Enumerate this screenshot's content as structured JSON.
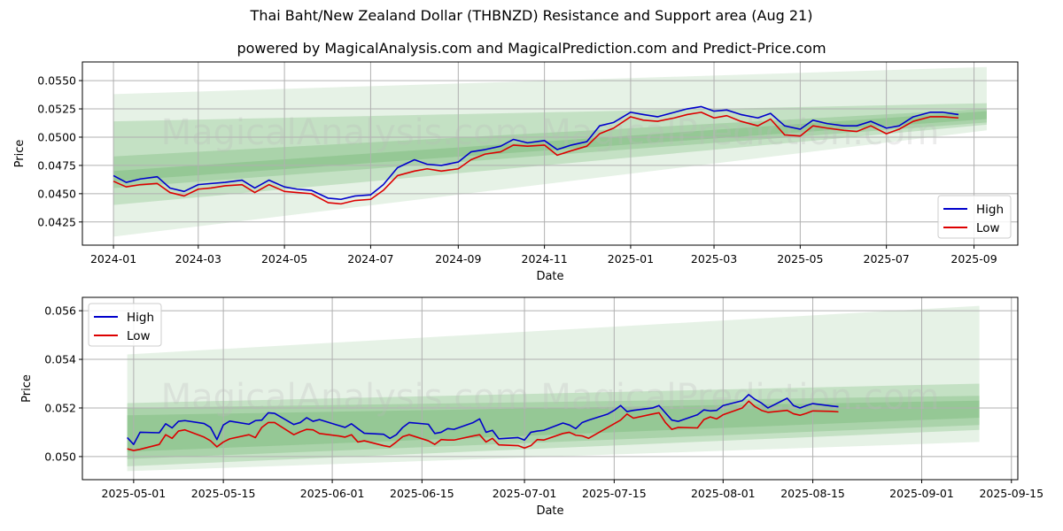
{
  "title": "Thai Baht/New Zealand Dollar (THBNZD) Resistance and Support area (Aug 21)",
  "subtitle": "powered by MagicalAnalysis.com and MagicalPrediction.com and Predict-Price.com",
  "watermarks": [
    "MagicalAnalysis.com",
    "MagicalPrediction.com"
  ],
  "colors": {
    "high": "#0000cc",
    "low": "#dd0000",
    "band": "#4ca64c",
    "grid": "#b0b0b0"
  },
  "chart_data": [
    {
      "type": "line",
      "xlabel": "Date",
      "ylabel": "Price",
      "grid": true,
      "legend": {
        "position": "bottom-right",
        "entries": [
          "High",
          "Low"
        ]
      },
      "xlim": [
        "2023-12-10",
        "2025-10-02"
      ],
      "ylim": [
        0.04045,
        0.05665
      ],
      "x_ticks": [
        "2024-01",
        "2024-03",
        "2024-05",
        "2024-07",
        "2024-09",
        "2024-11",
        "2025-01",
        "2025-03",
        "2025-05",
        "2025-07",
        "2025-09"
      ],
      "y_ticks": [
        "0.0425",
        "0.0450",
        "0.0475",
        "0.0500",
        "0.0525",
        "0.0550"
      ],
      "bands": [
        {
          "x": [
            "2024-01-01",
            "2025-09-10"
          ],
          "upper": [
            0.0538,
            0.0562
          ],
          "lower": [
            0.0412,
            0.0506
          ]
        },
        {
          "x": [
            "2024-01-01",
            "2025-09-10"
          ],
          "upper": [
            0.0514,
            0.053
          ],
          "lower": [
            0.044,
            0.0511
          ]
        },
        {
          "x": [
            "2024-01-01",
            "2025-09-10"
          ],
          "upper": [
            0.0483,
            0.0525
          ],
          "lower": [
            0.0455,
            0.0513
          ]
        },
        {
          "x": [
            "2024-01-01",
            "2025-09-10"
          ],
          "upper": [
            0.047,
            0.0523
          ],
          "lower": [
            0.0461,
            0.0516
          ]
        }
      ],
      "dates": [
        "2024-01-01",
        "2024-01-10",
        "2024-01-20",
        "2024-02-01",
        "2024-02-10",
        "2024-02-20",
        "2024-03-01",
        "2024-03-10",
        "2024-03-20",
        "2024-04-01",
        "2024-04-10",
        "2024-04-20",
        "2024-05-01",
        "2024-05-10",
        "2024-05-20",
        "2024-06-01",
        "2024-06-10",
        "2024-06-20",
        "2024-07-01",
        "2024-07-10",
        "2024-07-20",
        "2024-08-01",
        "2024-08-10",
        "2024-08-20",
        "2024-09-01",
        "2024-09-10",
        "2024-09-20",
        "2024-10-01",
        "2024-10-10",
        "2024-10-20",
        "2024-11-01",
        "2024-11-10",
        "2024-11-20",
        "2024-12-01",
        "2024-12-10",
        "2024-12-20",
        "2025-01-01",
        "2025-01-10",
        "2025-01-20",
        "2025-02-01",
        "2025-02-10",
        "2025-02-20",
        "2025-03-01",
        "2025-03-10",
        "2025-03-20",
        "2025-04-01",
        "2025-04-10",
        "2025-04-20",
        "2025-05-01",
        "2025-05-10",
        "2025-05-20",
        "2025-06-01",
        "2025-06-10",
        "2025-06-20",
        "2025-07-01",
        "2025-07-10",
        "2025-07-20",
        "2025-08-01",
        "2025-08-10",
        "2025-08-21"
      ],
      "series": [
        {
          "name": "High",
          "values": [
            0.0466,
            0.046,
            0.0463,
            0.0465,
            0.0455,
            0.0452,
            0.0458,
            0.0459,
            0.046,
            0.0462,
            0.0455,
            0.0462,
            0.0456,
            0.0454,
            0.0453,
            0.0446,
            0.0445,
            0.0448,
            0.0449,
            0.0458,
            0.0473,
            0.048,
            0.0476,
            0.0475,
            0.0478,
            0.0487,
            0.0489,
            0.0492,
            0.0498,
            0.0495,
            0.0497,
            0.0489,
            0.0493,
            0.0496,
            0.051,
            0.0513,
            0.0522,
            0.052,
            0.0518,
            0.0522,
            0.0525,
            0.0527,
            0.0523,
            0.0524,
            0.052,
            0.0517,
            0.0521,
            0.051,
            0.0507,
            0.0515,
            0.0512,
            0.051,
            0.051,
            0.0514,
            0.0508,
            0.051,
            0.0518,
            0.0522,
            0.0522,
            0.052
          ]
        },
        {
          "name": "Low",
          "values": [
            0.0461,
            0.0456,
            0.0458,
            0.0459,
            0.0451,
            0.0448,
            0.0454,
            0.0455,
            0.0457,
            0.0458,
            0.0451,
            0.0458,
            0.0452,
            0.0451,
            0.045,
            0.0442,
            0.0441,
            0.0444,
            0.0445,
            0.0453,
            0.0466,
            0.047,
            0.0472,
            0.047,
            0.0472,
            0.048,
            0.0485,
            0.0487,
            0.0493,
            0.0492,
            0.0493,
            0.0484,
            0.0488,
            0.0492,
            0.0503,
            0.0508,
            0.0518,
            0.0515,
            0.0514,
            0.0517,
            0.052,
            0.0522,
            0.0517,
            0.0519,
            0.0514,
            0.051,
            0.0516,
            0.0502,
            0.0501,
            0.051,
            0.0508,
            0.0506,
            0.0505,
            0.051,
            0.0503,
            0.0507,
            0.0514,
            0.0518,
            0.0518,
            0.0517
          ]
        }
      ]
    },
    {
      "type": "line",
      "xlabel": "Date",
      "ylabel": "Price",
      "grid": true,
      "legend": {
        "position": "top-left",
        "entries": [
          "High",
          "Low"
        ]
      },
      "xlim": [
        "2025-04-23",
        "2025-09-16"
      ],
      "ylim": [
        0.04905,
        0.05655
      ],
      "x_ticks": [
        "2025-05-01",
        "2025-05-15",
        "2025-06-01",
        "2025-06-15",
        "2025-07-01",
        "2025-07-15",
        "2025-08-01",
        "2025-08-15",
        "2025-09-01",
        "2025-09-15"
      ],
      "y_ticks": [
        "0.050",
        "0.052",
        "0.054",
        "0.056"
      ],
      "bands": [
        {
          "x": [
            "2025-04-30",
            "2025-09-10"
          ],
          "upper": [
            0.0542,
            0.0562
          ],
          "lower": [
            0.0494,
            0.0506
          ]
        },
        {
          "x": [
            "2025-04-30",
            "2025-09-10"
          ],
          "upper": [
            0.0522,
            0.053
          ],
          "lower": [
            0.0496,
            0.0511
          ]
        },
        {
          "x": [
            "2025-04-30",
            "2025-09-10"
          ],
          "upper": [
            0.052,
            0.0525
          ],
          "lower": [
            0.0499,
            0.0513
          ]
        },
        {
          "x": [
            "2025-04-30",
            "2025-09-10"
          ],
          "upper": [
            0.0517,
            0.0523
          ],
          "lower": [
            0.0502,
            0.0516
          ]
        }
      ],
      "dates": [
        "2025-04-30",
        "2025-05-01",
        "2025-05-02",
        "2025-05-05",
        "2025-05-06",
        "2025-05-07",
        "2025-05-08",
        "2025-05-09",
        "2025-05-12",
        "2025-05-13",
        "2025-05-14",
        "2025-05-15",
        "2025-05-16",
        "2025-05-19",
        "2025-05-20",
        "2025-05-21",
        "2025-05-22",
        "2025-05-23",
        "2025-05-26",
        "2025-05-27",
        "2025-05-28",
        "2025-05-29",
        "2025-05-30",
        "2025-06-02",
        "2025-06-03",
        "2025-06-04",
        "2025-06-05",
        "2025-06-06",
        "2025-06-09",
        "2025-06-10",
        "2025-06-11",
        "2025-06-12",
        "2025-06-13",
        "2025-06-16",
        "2025-06-17",
        "2025-06-18",
        "2025-06-19",
        "2025-06-20",
        "2025-06-23",
        "2025-06-24",
        "2025-06-25",
        "2025-06-26",
        "2025-06-27",
        "2025-06-30",
        "2025-07-01",
        "2025-07-02",
        "2025-07-03",
        "2025-07-04",
        "2025-07-07",
        "2025-07-08",
        "2025-07-09",
        "2025-07-10",
        "2025-07-11",
        "2025-07-14",
        "2025-07-15",
        "2025-07-16",
        "2025-07-17",
        "2025-07-18",
        "2025-07-21",
        "2025-07-22",
        "2025-07-23",
        "2025-07-24",
        "2025-07-25",
        "2025-07-28",
        "2025-07-29",
        "2025-07-30",
        "2025-07-31",
        "2025-08-01",
        "2025-08-04",
        "2025-08-05",
        "2025-08-06",
        "2025-08-07",
        "2025-08-08",
        "2025-08-11",
        "2025-08-12",
        "2025-08-13",
        "2025-08-14",
        "2025-08-15",
        "2025-08-18",
        "2025-08-19"
      ],
      "series": [
        {
          "name": "High",
          "values": [
            0.05078,
            0.0505,
            0.051,
            0.05098,
            0.05135,
            0.05118,
            0.05145,
            0.05148,
            0.05136,
            0.0512,
            0.0507,
            0.0513,
            0.05146,
            0.05133,
            0.05148,
            0.0515,
            0.0518,
            0.05178,
            0.05132,
            0.0514,
            0.0516,
            0.05145,
            0.05152,
            0.05128,
            0.0512,
            0.05135,
            0.05115,
            0.05096,
            0.05092,
            0.05075,
            0.0509,
            0.0512,
            0.0514,
            0.05133,
            0.05095,
            0.051,
            0.05115,
            0.05112,
            0.0514,
            0.05155,
            0.051,
            0.05108,
            0.05073,
            0.05078,
            0.05068,
            0.051,
            0.05105,
            0.05108,
            0.05138,
            0.0513,
            0.05115,
            0.0514,
            0.0515,
            0.05175,
            0.0519,
            0.0521,
            0.05185,
            0.0519,
            0.052,
            0.0521,
            0.0518,
            0.0515,
            0.05145,
            0.05172,
            0.05192,
            0.05188,
            0.0519,
            0.0521,
            0.0523,
            0.05255,
            0.05235,
            0.0522,
            0.052,
            0.0524,
            0.0521,
            0.052,
            0.0521,
            0.05218,
            0.05208,
            0.05205
          ]
        },
        {
          "name": "Low",
          "values": [
            0.05032,
            0.05025,
            0.0503,
            0.0505,
            0.0509,
            0.05075,
            0.05105,
            0.0511,
            0.0508,
            0.05065,
            0.0504,
            0.0506,
            0.05073,
            0.0509,
            0.05078,
            0.0512,
            0.0514,
            0.0514,
            0.0509,
            0.05102,
            0.05112,
            0.0511,
            0.05095,
            0.05085,
            0.0508,
            0.0509,
            0.0506,
            0.05065,
            0.05045,
            0.0504,
            0.0506,
            0.05082,
            0.0509,
            0.05065,
            0.0505,
            0.0507,
            0.05068,
            0.05068,
            0.05085,
            0.0509,
            0.0506,
            0.05075,
            0.05048,
            0.05045,
            0.05035,
            0.05045,
            0.0507,
            0.05068,
            0.05095,
            0.051,
            0.05088,
            0.05085,
            0.05075,
            0.0512,
            0.05135,
            0.0515,
            0.05175,
            0.05158,
            0.05175,
            0.0518,
            0.0514,
            0.05112,
            0.0512,
            0.05118,
            0.05152,
            0.05163,
            0.05155,
            0.05172,
            0.052,
            0.05228,
            0.05205,
            0.0519,
            0.05182,
            0.0519,
            0.05176,
            0.0517,
            0.05178,
            0.05188,
            0.05186,
            0.05184
          ]
        }
      ]
    }
  ]
}
